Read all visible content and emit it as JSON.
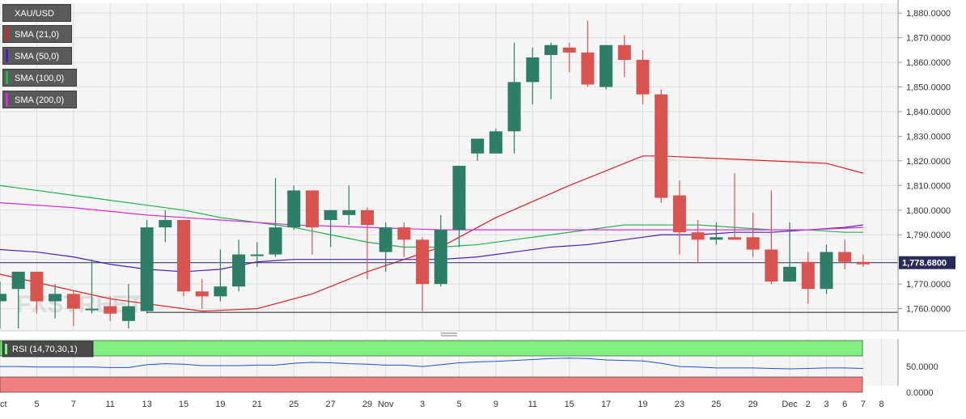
{
  "chart_data": {
    "type": "candlestick",
    "symbol": "XAU/USD",
    "current_price": "1,778.6800",
    "colors": {
      "up": "#2e7d66",
      "down": "#d9534f",
      "sma21": "#e02020",
      "sma50": "#4b1fb5",
      "sma100": "#22b14c",
      "sma200": "#d82bd8",
      "rsi_line": "#2050d0",
      "rsi_overbought": "#80f080",
      "rsi_oversold": "#f08080",
      "background": "#f5f5f5",
      "grid": "#e0e0e0",
      "price_tag_bg": "#2a2a5a"
    },
    "indicators": [
      {
        "label": "SMA (21,0)",
        "color": "#e02020"
      },
      {
        "label": "SMA (50,0)",
        "color": "#4b1fb5"
      },
      {
        "label": "SMA (100,0)",
        "color": "#22b14c"
      },
      {
        "label": "SMA (200,0)",
        "color": "#d82bd8"
      }
    ],
    "y_axis": {
      "ticks": [
        "1,760.0000",
        "1,770.0000",
        "1,780.0000",
        "1,790.0000",
        "1,800.0000",
        "1,810.0000",
        "1,820.0000",
        "1,830.0000",
        "1,840.0000",
        "1,850.0000",
        "1,860.0000",
        "1,870.0000",
        "1,880.0000"
      ],
      "range": [
        1751,
        1884
      ]
    },
    "x_axis": {
      "ticks": [
        {
          "label": "Oct",
          "i": 0
        },
        {
          "label": "5",
          "i": 2
        },
        {
          "label": "7",
          "i": 4
        },
        {
          "label": "11",
          "i": 6
        },
        {
          "label": "13",
          "i": 8
        },
        {
          "label": "15",
          "i": 10
        },
        {
          "label": "19",
          "i": 12
        },
        {
          "label": "21",
          "i": 14
        },
        {
          "label": "25",
          "i": 16
        },
        {
          "label": "27",
          "i": 18
        },
        {
          "label": "29",
          "i": 20
        },
        {
          "label": "Nov",
          "i": 21
        },
        {
          "label": "3",
          "i": 23
        },
        {
          "label": "5",
          "i": 25
        },
        {
          "label": "9",
          "i": 27
        },
        {
          "label": "11",
          "i": 29
        },
        {
          "label": "15",
          "i": 31
        },
        {
          "label": "17",
          "i": 33
        },
        {
          "label": "19",
          "i": 35
        },
        {
          "label": "23",
          "i": 37
        },
        {
          "label": "25",
          "i": 39
        },
        {
          "label": "29",
          "i": 41
        },
        {
          "label": "Dec",
          "i": 43
        },
        {
          "label": "2",
          "i": 44
        },
        {
          "label": "3",
          "i": 45
        },
        {
          "label": "6",
          "i": 46
        },
        {
          "label": "7",
          "i": 47
        },
        {
          "label": "8",
          "i": 48
        }
      ]
    },
    "candles": [
      {
        "o": 1763,
        "h": 1771,
        "l": 1752,
        "c": 1766
      },
      {
        "o": 1768,
        "h": 1775,
        "l": 1752,
        "c": 1775
      },
      {
        "o": 1775,
        "h": 1775,
        "l": 1758,
        "c": 1763
      },
      {
        "o": 1763,
        "h": 1770,
        "l": 1756,
        "c": 1766
      },
      {
        "o": 1766,
        "h": 1767,
        "l": 1753,
        "c": 1760
      },
      {
        "o": 1760,
        "h": 1780,
        "l": 1758,
        "c": 1760
      },
      {
        "o": 1761,
        "h": 1765,
        "l": 1755,
        "c": 1758
      },
      {
        "o": 1755,
        "h": 1770,
        "l": 1752,
        "c": 1761
      },
      {
        "o": 1759,
        "h": 1796,
        "l": 1758,
        "c": 1793
      },
      {
        "o": 1793,
        "h": 1800,
        "l": 1787,
        "c": 1796
      },
      {
        "o": 1796,
        "h": 1796,
        "l": 1765,
        "c": 1767
      },
      {
        "o": 1767,
        "h": 1772,
        "l": 1760,
        "c": 1765
      },
      {
        "o": 1765,
        "h": 1784,
        "l": 1763,
        "c": 1769
      },
      {
        "o": 1769,
        "h": 1788,
        "l": 1767,
        "c": 1782
      },
      {
        "o": 1782,
        "h": 1787,
        "l": 1777,
        "c": 1782
      },
      {
        "o": 1782,
        "h": 1813,
        "l": 1781,
        "c": 1793
      },
      {
        "o": 1793,
        "h": 1810,
        "l": 1792,
        "c": 1808
      },
      {
        "o": 1808,
        "h": 1808,
        "l": 1782,
        "c": 1793
      },
      {
        "o": 1796,
        "h": 1800,
        "l": 1785,
        "c": 1800
      },
      {
        "o": 1798,
        "h": 1810,
        "l": 1794,
        "c": 1800
      },
      {
        "o": 1800,
        "h": 1801,
        "l": 1772,
        "c": 1794
      },
      {
        "o": 1783,
        "h": 1795,
        "l": 1775,
        "c": 1793
      },
      {
        "o": 1793,
        "h": 1795,
        "l": 1781,
        "c": 1788
      },
      {
        "o": 1788,
        "h": 1789,
        "l": 1759,
        "c": 1770
      },
      {
        "o": 1770,
        "h": 1798,
        "l": 1769,
        "c": 1792
      },
      {
        "o": 1792,
        "h": 1818,
        "l": 1785,
        "c": 1818
      },
      {
        "o": 1823,
        "h": 1829,
        "l": 1820,
        "c": 1829
      },
      {
        "o": 1823,
        "h": 1833,
        "l": 1823,
        "c": 1832
      },
      {
        "o": 1832,
        "h": 1868,
        "l": 1823,
        "c": 1852
      },
      {
        "o": 1852,
        "h": 1866,
        "l": 1843,
        "c": 1862
      },
      {
        "o": 1863,
        "h": 1868,
        "l": 1845,
        "c": 1867
      },
      {
        "o": 1866,
        "h": 1868,
        "l": 1856,
        "c": 1864
      },
      {
        "o": 1864,
        "h": 1877,
        "l": 1850,
        "c": 1851
      },
      {
        "o": 1850,
        "h": 1867,
        "l": 1849,
        "c": 1867
      },
      {
        "o": 1867,
        "h": 1871,
        "l": 1854,
        "c": 1861
      },
      {
        "o": 1861,
        "h": 1865,
        "l": 1843,
        "c": 1847
      },
      {
        "o": 1847,
        "h": 1849,
        "l": 1803,
        "c": 1805
      },
      {
        "o": 1806,
        "h": 1812,
        "l": 1782,
        "c": 1791
      },
      {
        "o": 1791,
        "h": 1796,
        "l": 1779,
        "c": 1788
      },
      {
        "o": 1788,
        "h": 1795,
        "l": 1786,
        "c": 1789
      },
      {
        "o": 1789,
        "h": 1815,
        "l": 1788,
        "c": 1788
      },
      {
        "o": 1789,
        "h": 1799,
        "l": 1781,
        "c": 1784
      },
      {
        "o": 1784,
        "h": 1808,
        "l": 1770,
        "c": 1771
      },
      {
        "o": 1771,
        "h": 1795,
        "l": 1771,
        "c": 1777
      },
      {
        "o": 1779,
        "h": 1783,
        "l": 1762,
        "c": 1768
      },
      {
        "o": 1768,
        "h": 1786,
        "l": 1766,
        "c": 1783
      },
      {
        "o": 1783,
        "h": 1788,
        "l": 1776,
        "c": 1779
      },
      {
        "o": 1779,
        "h": 1782,
        "l": 1777,
        "c": 1778
      }
    ],
    "sma": [
      {
        "name": "SMA (21,0)",
        "color": "#e02020",
        "x": [
          0,
          6,
          11,
          14,
          17,
          20,
          22,
          24,
          27,
          31,
          35,
          36,
          39,
          42,
          45,
          47
        ],
        "y": [
          1774,
          1764,
          1759,
          1760,
          1766,
          1775,
          1780,
          1785,
          1797,
          1810,
          1822,
          1822,
          1821,
          1820,
          1819,
          1815
        ]
      },
      {
        "name": "SMA (50,0)",
        "color": "#4b1fb5",
        "x": [
          0,
          2,
          4,
          6,
          8,
          10,
          12,
          14,
          16,
          18,
          20,
          22,
          24,
          26,
          28,
          30,
          32,
          34,
          36,
          38,
          40,
          42,
          44,
          46,
          47
        ],
        "y": [
          1784,
          1783,
          1781,
          1778,
          1776,
          1775,
          1776,
          1779,
          1780,
          1780,
          1780,
          1780,
          1780,
          1781,
          1783,
          1785,
          1786,
          1788,
          1790,
          1790,
          1791,
          1791,
          1792,
          1793,
          1794
        ]
      },
      {
        "name": "SMA (100,0)",
        "color": "#22b14c",
        "x": [
          0,
          2,
          4,
          6,
          8,
          10,
          12,
          14,
          16,
          18,
          20,
          22,
          24,
          26,
          28,
          30,
          32,
          34,
          36,
          38,
          40,
          42,
          44,
          46,
          47
        ],
        "y": [
          1810,
          1808,
          1806,
          1804,
          1802,
          1800,
          1797,
          1795,
          1793,
          1790,
          1787,
          1785,
          1785,
          1786,
          1788,
          1790,
          1792,
          1794,
          1794,
          1794,
          1793,
          1792,
          1792,
          1791,
          1791
        ]
      },
      {
        "name": "SMA (200,0)",
        "color": "#d82bd8",
        "x": [
          0,
          4,
          8,
          12,
          16,
          20,
          24,
          28,
          32,
          36,
          40,
          44,
          47
        ],
        "y": [
          1803,
          1801,
          1798,
          1796,
          1794,
          1793,
          1792,
          1792,
          1792,
          1792,
          1792,
          1792,
          1793
        ]
      }
    ],
    "support_line": {
      "value": 1758.5
    },
    "rsi": {
      "label": "RSI (14,70,30,1)",
      "axis_ticks": [
        "50.0000",
        "0.0000"
      ],
      "levels": {
        "overbought": 70,
        "oversold": 30
      },
      "values": [
        48,
        48,
        47,
        47,
        47,
        47,
        46,
        46,
        52,
        54,
        53,
        50,
        50,
        50,
        51,
        51,
        55,
        57,
        56,
        54,
        53,
        51,
        51,
        48,
        52,
        56,
        58,
        59,
        61,
        63,
        65,
        66,
        65,
        62,
        61,
        60,
        55,
        48,
        47,
        45,
        45,
        45,
        44,
        43,
        44,
        45,
        45,
        44
      ]
    },
    "watermark": "FXSTREET"
  }
}
